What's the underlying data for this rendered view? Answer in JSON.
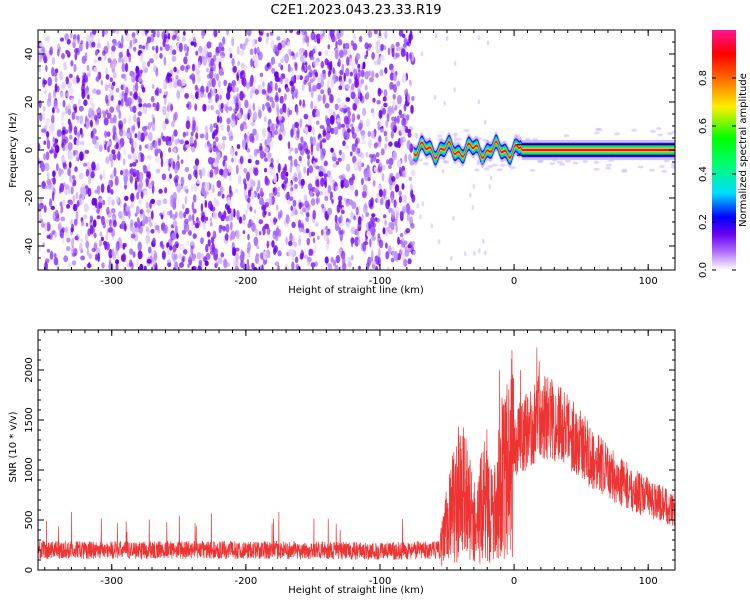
{
  "title": "C2E1.2023.043.23.33.R19",
  "chart_data": [
    {
      "type": "heatmap",
      "xlabel": "Height of straight line (km)",
      "ylabel": "Frequency (Hz)",
      "xlim": [
        -355,
        120
      ],
      "ylim": [
        -50,
        50
      ],
      "x_ticks": [
        -300,
        -200,
        -100,
        0,
        100
      ],
      "y_ticks": [
        -40,
        -20,
        0,
        20,
        40
      ],
      "noise_region_x": [
        -355,
        -75
      ],
      "signal_region_x": [
        -75,
        120
      ],
      "signal_center_frequency": 0,
      "colorbar": {
        "label": "Normalized spectral amplitude",
        "range": [
          0.0,
          1.0
        ],
        "ticks": [
          0.0,
          0.2,
          0.4,
          0.6,
          0.8
        ],
        "colormap": [
          "#ffffff",
          "#6600ee",
          "#0000ff",
          "#00ddff",
          "#00ff00",
          "#ffee00",
          "#ff6600",
          "#ff0000",
          "#ff1493"
        ]
      }
    },
    {
      "type": "line",
      "xlabel": "Height of straight line (km)",
      "ylabel": "SNR (10 * v/v)",
      "xlim": [
        -355,
        120
      ],
      "ylim": [
        0,
        2400
      ],
      "x_ticks": [
        -300,
        -200,
        -100,
        0,
        100
      ],
      "y_ticks": [
        0,
        500,
        1000,
        1500,
        2000
      ],
      "line_color": "#ee3333",
      "envelope_x": [
        -355,
        -300,
        -200,
        -100,
        -55,
        -50,
        -45,
        -40,
        -35,
        -30,
        -25,
        -20,
        -15,
        -10,
        -5,
        0,
        10,
        20,
        30,
        40,
        50,
        60,
        70,
        80,
        90,
        100,
        110,
        120
      ],
      "envelope_y": [
        200,
        200,
        200,
        190,
        200,
        450,
        650,
        800,
        700,
        450,
        600,
        750,
        500,
        900,
        1000,
        1250,
        1400,
        1550,
        1500,
        1400,
        1250,
        1100,
        980,
        880,
        790,
        720,
        660,
        600
      ]
    }
  ]
}
